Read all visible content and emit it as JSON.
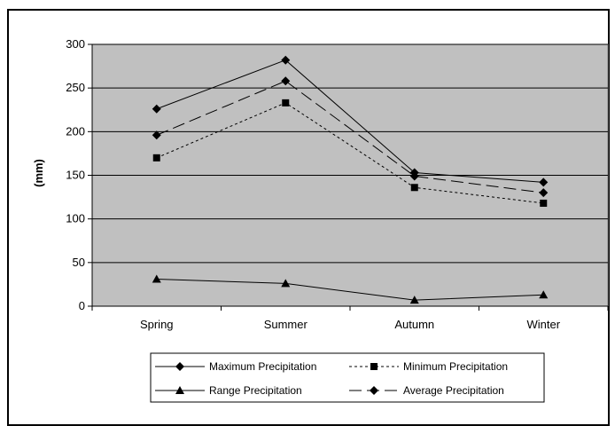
{
  "chart_data": {
    "type": "line",
    "categories": [
      "Spring",
      "Summer",
      "Autumn",
      "Winter"
    ],
    "ylabel": "(mm)",
    "ylim": [
      0,
      300
    ],
    "yticks": [
      0,
      50,
      100,
      150,
      200,
      250,
      300
    ],
    "grid": true,
    "legend_placement": "bottom",
    "plot_background": "#c0c0c0",
    "series": [
      {
        "name": "Maximum Precipitation",
        "values": [
          226,
          282,
          153,
          142
        ],
        "marker": "diamond",
        "dash": "solid"
      },
      {
        "name": "Minimum Precipitation",
        "values": [
          170,
          233,
          136,
          118
        ],
        "marker": "square",
        "dash": "dotted"
      },
      {
        "name": "Range Precipitation",
        "values": [
          31,
          26,
          7,
          13
        ],
        "marker": "triangle",
        "dash": "solid"
      },
      {
        "name": "Average Precipitation",
        "values": [
          196,
          258,
          149,
          130
        ],
        "marker": "diamond",
        "dash": "longdash"
      }
    ]
  }
}
